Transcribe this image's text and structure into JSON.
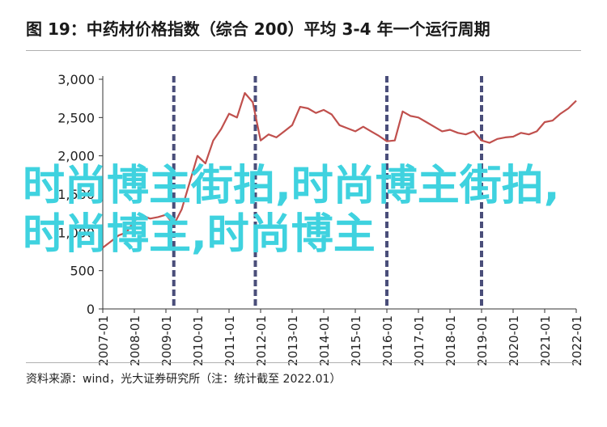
{
  "title": "图 19：中药材价格指数（综合 200）平均 3-4 年一个运行周期",
  "source": "资料来源：wind，光大证券研究所（注：统计截至 2022.01）",
  "watermark": "时尚博主街拍,时尚博主街拍,时尚博主,时尚博主",
  "colors": {
    "line": "#c0504d",
    "cycle_marker": "#4a4e7a",
    "axis": "#333333",
    "watermark": "#3fd2df"
  },
  "chart_data": {
    "type": "line",
    "title": "",
    "xlabel": "",
    "ylabel": "",
    "ylim": [
      0,
      3000
    ],
    "yticks": [
      0,
      500,
      1000,
      1500,
      2000,
      2500,
      3000
    ],
    "ytick_labels": [
      "0",
      "500",
      "1,000",
      "1,500",
      "2,000",
      "2,500",
      "3,000"
    ],
    "xtick_labels": [
      "2007-01",
      "2008-01",
      "2009-01",
      "2010-01",
      "2011-01",
      "2012-01",
      "2013-01",
      "2014-01",
      "2015-01",
      "2016-01",
      "2017-01",
      "2018-01",
      "2019-01",
      "2020-01",
      "2021-01",
      "2022-01"
    ],
    "xlim": [
      "2007-01",
      "2022-01"
    ],
    "cycle_markers": [
      "2009-04",
      "2011-11",
      "2016-01",
      "2019-01"
    ],
    "grid": false,
    "series": [
      {
        "x": [
          "2007-01",
          "2007-04",
          "2007-07",
          "2007-10",
          "2008-01",
          "2008-04",
          "2008-07",
          "2008-10",
          "2009-01",
          "2009-04",
          "2009-07",
          "2009-10",
          "2010-01",
          "2010-04",
          "2010-07",
          "2010-10",
          "2011-01",
          "2011-04",
          "2011-07",
          "2011-10",
          "2012-01",
          "2012-04",
          "2012-07",
          "2012-10",
          "2013-01",
          "2013-04",
          "2013-07",
          "2013-10",
          "2014-01",
          "2014-04",
          "2014-07",
          "2014-10",
          "2015-01",
          "2015-04",
          "2015-07",
          "2015-10",
          "2016-01",
          "2016-04",
          "2016-07",
          "2016-10",
          "2017-01",
          "2017-04",
          "2017-07",
          "2017-10",
          "2018-01",
          "2018-04",
          "2018-07",
          "2018-10",
          "2019-01",
          "2019-04",
          "2019-07",
          "2019-10",
          "2020-01",
          "2020-04",
          "2020-07",
          "2020-10",
          "2021-01",
          "2021-04",
          "2021-07",
          "2021-10",
          "2022-01"
        ],
        "values": [
          800,
          880,
          960,
          1000,
          1150,
          1220,
          1180,
          1200,
          1230,
          1100,
          1300,
          1650,
          2000,
          1900,
          2200,
          2350,
          2550,
          2500,
          2820,
          2700,
          2200,
          2280,
          2240,
          2320,
          2400,
          2640,
          2620,
          2560,
          2600,
          2540,
          2400,
          2360,
          2320,
          2380,
          2320,
          2260,
          2190,
          2200,
          2580,
          2520,
          2500,
          2440,
          2380,
          2320,
          2340,
          2300,
          2280,
          2320,
          2200,
          2170,
          2220,
          2240,
          2250,
          2300,
          2280,
          2320,
          2440,
          2460,
          2550,
          2620,
          2720
        ]
      }
    ]
  }
}
